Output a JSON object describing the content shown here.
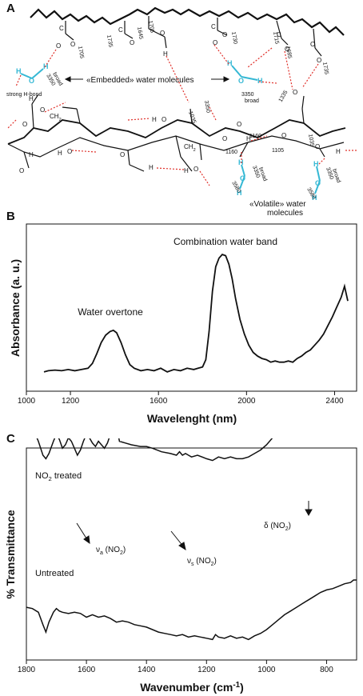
{
  "panels": {
    "a": {
      "letter": "A",
      "labels": {
        "embedded": "«Embedded» water molecules",
        "volatile_line1": "«Volatile» water",
        "volatile_line2": "molecules",
        "strong_hbond": "strong H-bond",
        "broad": "broad",
        "ch2": "CH2",
        "h": "H",
        "o": "O",
        "c": "C"
      },
      "wavenumbers": [
        "1705",
        "1735",
        "1645",
        "1705",
        "1730",
        "1715",
        "1685",
        "1735",
        "3350",
        "3350",
        "3350",
        "1035",
        "1335",
        "1160",
        "1160",
        "1105",
        "1035",
        "3350",
        "3350",
        "3580",
        "3580",
        "3580"
      ],
      "colors": {
        "water": "#35b8d4",
        "hbond": "#e0302a"
      }
    },
    "b": {
      "letter": "B",
      "annotations": [
        "Water overtone",
        "Combination water band"
      ]
    },
    "c": {
      "letter": "C",
      "annotations": {
        "no2_treated": "NO2 treated",
        "untreated": "Untreated",
        "nu_a": "νa (NO2)",
        "nu_s": "νs (NO2)",
        "delta": "δ (NO2)"
      }
    }
  },
  "chart_data": [
    {
      "type": "line",
      "panel": "B",
      "title": "",
      "xlabel": "Wavelenght (nm)",
      "ylabel": "Absorbance (a. u.)",
      "xlim": [
        1000,
        2500
      ],
      "xticks": [
        1000,
        1200,
        1600,
        2000,
        2400
      ],
      "xtick_labels": [
        "1000",
        "1200",
        "1600",
        "2000",
        "2400"
      ],
      "ylim": [
        0,
        1.0
      ],
      "grid": false,
      "series": [
        {
          "x": [
            1080,
            1100,
            1130,
            1160,
            1190,
            1220,
            1250,
            1280,
            1300,
            1320,
            1340,
            1360,
            1380,
            1395,
            1410,
            1430,
            1450,
            1470,
            1490,
            1520,
            1550,
            1580,
            1610,
            1640,
            1670,
            1700,
            1730,
            1760,
            1780,
            1800,
            1815,
            1830,
            1845,
            1860,
            1875,
            1890,
            1905,
            1920,
            1935,
            1950,
            1970,
            1990,
            2010,
            2030,
            2050,
            2070,
            2090,
            2110,
            2130,
            2150,
            2170,
            2190,
            2210,
            2230,
            2250,
            2270,
            2290,
            2310,
            2330,
            2350,
            2370,
            2390,
            2410,
            2430,
            2445,
            2460
          ],
          "y": [
            0.02,
            0.03,
            0.035,
            0.03,
            0.04,
            0.03,
            0.04,
            0.05,
            0.09,
            0.17,
            0.26,
            0.32,
            0.35,
            0.36,
            0.34,
            0.26,
            0.16,
            0.08,
            0.05,
            0.03,
            0.04,
            0.03,
            0.05,
            0.02,
            0.04,
            0.03,
            0.05,
            0.04,
            0.05,
            0.06,
            0.12,
            0.35,
            0.68,
            0.88,
            0.95,
            0.98,
            0.97,
            0.9,
            0.78,
            0.62,
            0.45,
            0.33,
            0.24,
            0.18,
            0.15,
            0.13,
            0.12,
            0.1,
            0.11,
            0.1,
            0.1,
            0.11,
            0.1,
            0.13,
            0.15,
            0.18,
            0.2,
            0.24,
            0.28,
            0.33,
            0.4,
            0.47,
            0.55,
            0.63,
            0.72,
            0.6
          ]
        }
      ]
    },
    {
      "type": "line",
      "panel": "C",
      "title": "",
      "xlabel": "Wavenumber (cm-1)",
      "ylabel": "% Transmittance",
      "xlim": [
        1800,
        700
      ],
      "xticks": [
        1800,
        1600,
        1400,
        1200,
        1000,
        800
      ],
      "xtick_labels": [
        "1800",
        "1600",
        "1400",
        "1200",
        "1000",
        "800"
      ],
      "ylim": [
        0,
        1.0
      ],
      "grid": false,
      "series": [
        {
          "name": "NO2 treated",
          "x": [
            1800,
            1780,
            1760,
            1745,
            1735,
            1725,
            1710,
            1700,
            1690,
            1680,
            1670,
            1660,
            1650,
            1640,
            1630,
            1620,
            1610,
            1600,
            1590,
            1580,
            1570,
            1560,
            1550,
            1540,
            1530,
            1520,
            1510,
            1500,
            1490,
            1470,
            1450,
            1420,
            1400,
            1380,
            1350,
            1320,
            1300,
            1290,
            1280,
            1270,
            1260,
            1250,
            1230,
            1200,
            1180,
            1160,
            1140,
            1120,
            1100,
            1080,
            1060,
            1050,
            1040,
            1020,
            1000,
            980,
            960,
            940,
            920,
            900,
            880,
            870,
            860,
            850,
            840,
            820,
            800,
            780,
            760,
            740,
            720,
            710,
            700
          ],
          "y": [
            0.93,
            0.88,
            0.8,
            0.72,
            0.7,
            0.73,
            0.8,
            0.84,
            0.81,
            0.76,
            0.78,
            0.82,
            0.8,
            0.76,
            0.72,
            0.75,
            0.8,
            0.84,
            0.82,
            0.79,
            0.77,
            0.8,
            0.78,
            0.76,
            0.79,
            0.84,
            0.86,
            0.89,
            0.8,
            0.79,
            0.78,
            0.77,
            0.77,
            0.76,
            0.74,
            0.73,
            0.72,
            0.74,
            0.72,
            0.73,
            0.72,
            0.71,
            0.72,
            0.7,
            0.69,
            0.71,
            0.7,
            0.71,
            0.7,
            0.7,
            0.71,
            0.72,
            0.73,
            0.75,
            0.78,
            0.82,
            0.86,
            0.88,
            0.9,
            0.89,
            0.85,
            0.84,
            0.87,
            0.91,
            0.93,
            0.96,
            0.95,
            0.97,
            0.99,
            1.0,
            0.98,
            1.0,
            1.0
          ]
        },
        {
          "name": "Untreated",
          "x": [
            1800,
            1780,
            1760,
            1745,
            1735,
            1725,
            1710,
            1700,
            1690,
            1680,
            1660,
            1640,
            1620,
            1600,
            1580,
            1560,
            1540,
            1520,
            1500,
            1480,
            1460,
            1440,
            1420,
            1400,
            1380,
            1360,
            1340,
            1320,
            1300,
            1280,
            1260,
            1240,
            1220,
            1200,
            1180,
            1170,
            1160,
            1140,
            1120,
            1100,
            1080,
            1060,
            1040,
            1020,
            1000,
            980,
            960,
            940,
            920,
            900,
            880,
            860,
            840,
            820,
            800,
            780,
            760,
            740,
            720,
            710,
            700
          ],
          "y": [
            0.38,
            0.37,
            0.34,
            0.24,
            0.18,
            0.26,
            0.34,
            0.37,
            0.35,
            0.34,
            0.33,
            0.34,
            0.33,
            0.3,
            0.32,
            0.3,
            0.31,
            0.29,
            0.26,
            0.27,
            0.26,
            0.24,
            0.23,
            0.22,
            0.2,
            0.18,
            0.17,
            0.16,
            0.15,
            0.16,
            0.14,
            0.15,
            0.14,
            0.13,
            0.12,
            0.16,
            0.14,
            0.13,
            0.15,
            0.13,
            0.14,
            0.12,
            0.15,
            0.17,
            0.2,
            0.24,
            0.28,
            0.32,
            0.35,
            0.38,
            0.41,
            0.44,
            0.47,
            0.5,
            0.52,
            0.53,
            0.55,
            0.57,
            0.58,
            0.6,
            0.6
          ]
        }
      ]
    }
  ]
}
